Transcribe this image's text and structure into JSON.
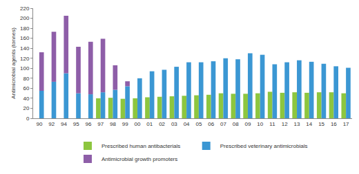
{
  "chart_data": {
    "type": "bar",
    "y_label": "Antimicrobial agents (tonnes)",
    "categories": [
      "90",
      "92",
      "94",
      "95",
      "96",
      "97",
      "98",
      "99",
      "00",
      "01",
      "02",
      "03",
      "04",
      "05",
      "06",
      "07",
      "08",
      "09",
      "10",
      "11",
      "12",
      "13",
      "14",
      "15",
      "16",
      "17"
    ],
    "series": [
      {
        "name": "Prescribed human antibacterials",
        "color": "#8dc63f",
        "values": [
          null,
          null,
          null,
          null,
          null,
          40,
          41,
          39,
          40,
          42,
          43,
          44,
          45,
          46,
          47,
          50,
          49,
          49,
          50,
          53,
          51,
          52,
          51,
          52,
          52,
          50
        ]
      },
      {
        "name": "Prescribed veterinary antimicrobials",
        "color": "#3b97d3",
        "values": [
          55,
          73,
          90,
          50,
          48,
          52,
          57,
          64,
          80,
          94,
          97,
          103,
          112,
          112,
          114,
          120,
          118,
          130,
          127,
          108,
          112,
          116,
          113,
          109,
          104,
          101
        ]
      },
      {
        "name": "Antimicrobial growth promoters",
        "color": "#8e5ea8",
        "values": [
          77,
          100,
          115,
          93,
          105,
          107,
          49,
          10,
          null,
          null,
          null,
          null,
          null,
          null,
          null,
          null,
          null,
          null,
          null,
          null,
          null,
          null,
          null,
          null,
          null,
          null
        ]
      }
    ],
    "stacked": true,
    "ylim": [
      0,
      220
    ],
    "yticks": [
      0,
      20,
      40,
      60,
      80,
      100,
      120,
      140,
      160,
      180,
      200,
      220
    ],
    "grid": false,
    "legend": "bottom"
  }
}
